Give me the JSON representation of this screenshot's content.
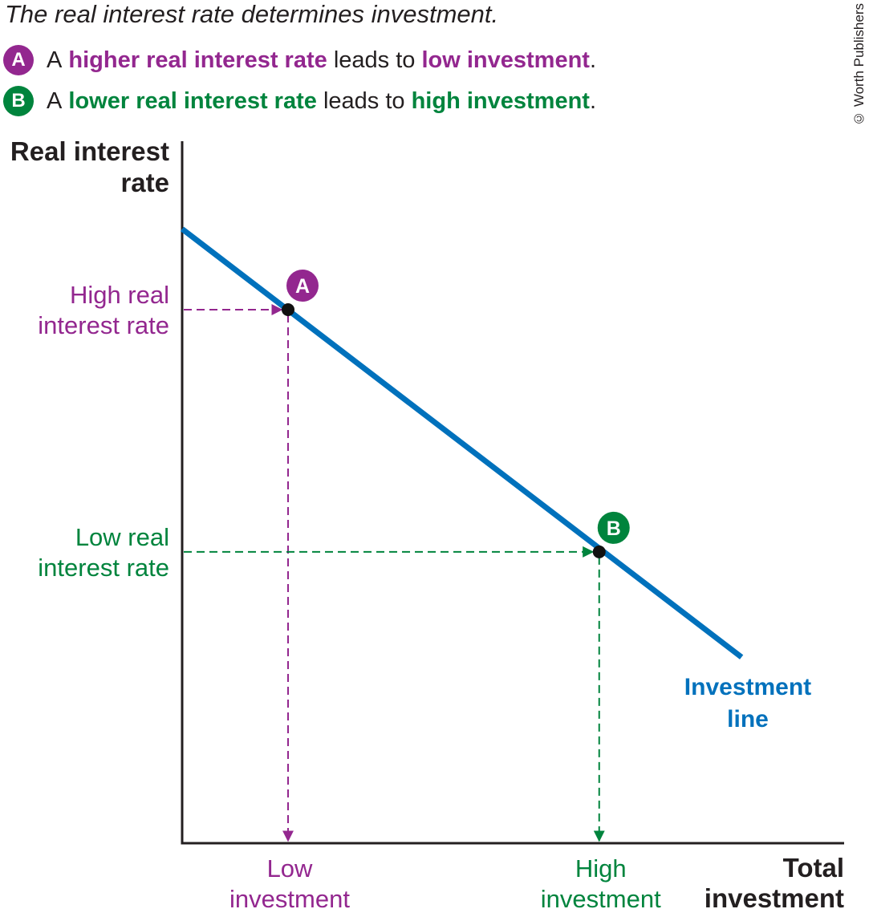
{
  "header": {
    "title": "The real interest rate determines investment.",
    "note_a": {
      "badge": "A",
      "prefix": "A",
      "highlight1": "higher real interest rate",
      "middle": "leads to",
      "highlight2": "low investment",
      "suffix": "."
    },
    "note_b": {
      "badge": "B",
      "prefix": "A",
      "highlight1": "lower real interest rate",
      "middle": "leads to",
      "highlight2": "high investment",
      "suffix": "."
    },
    "copyright": "© Worth Publishers"
  },
  "colors": {
    "line": "#0071bc",
    "purple": "#93278f",
    "green": "#00843d",
    "axis": "#231f20"
  },
  "chart_data": {
    "type": "line",
    "ylabel": [
      "Real interest",
      "rate"
    ],
    "xlabel": [
      "Total",
      "investment"
    ],
    "xlim": [
      0,
      100
    ],
    "ylim": [
      0,
      100
    ],
    "series": [
      {
        "name": "Investment line",
        "name_lines": [
          "Investment",
          "line"
        ],
        "x": [
          0,
          84.5
        ],
        "y": [
          87.5,
          26.5
        ]
      }
    ],
    "points": [
      {
        "id": "A",
        "x": 16,
        "y": 76,
        "x_label": [
          "Low",
          "investment"
        ],
        "y_label": [
          "High real",
          "interest rate"
        ],
        "color": "#93278f"
      },
      {
        "id": "B",
        "x": 63,
        "y": 41.5,
        "x_label": [
          "High",
          "investment"
        ],
        "y_label": [
          "Low real",
          "interest rate"
        ],
        "color": "#00843d"
      }
    ],
    "grid": false
  }
}
